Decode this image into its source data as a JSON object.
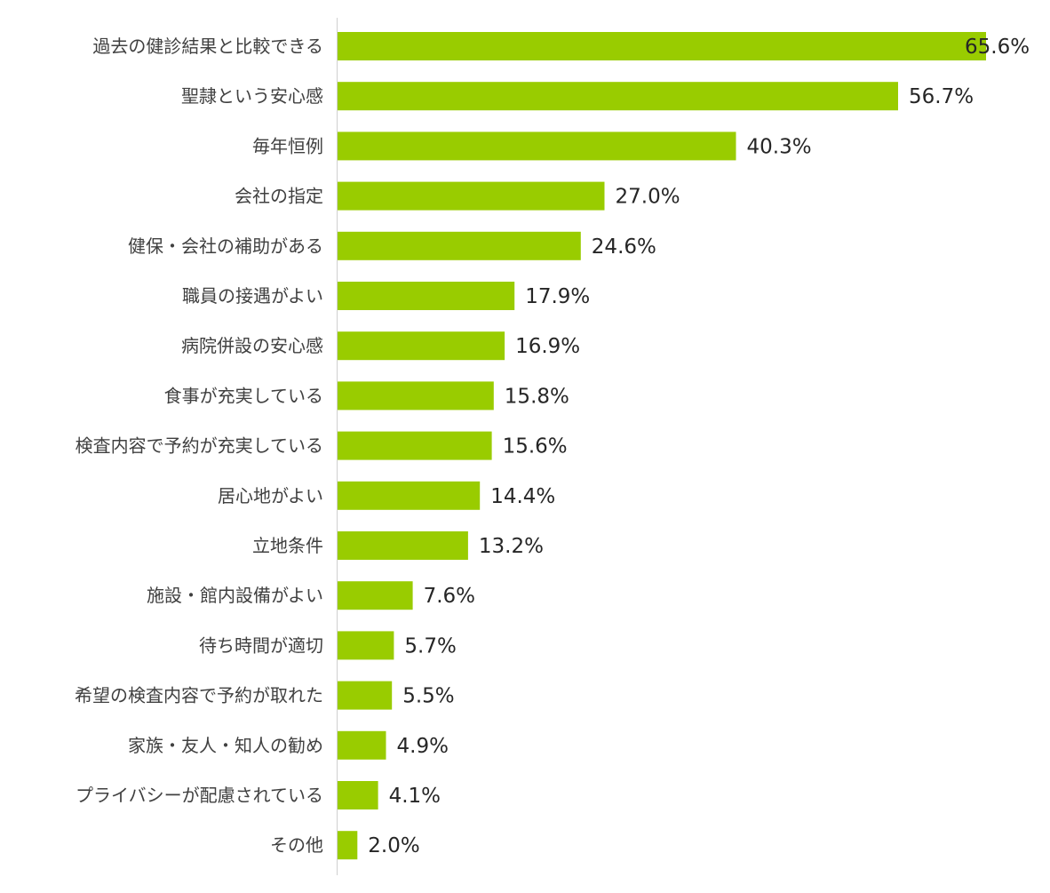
{
  "chart_data": {
    "type": "bar",
    "orientation": "horizontal",
    "title": "",
    "xlabel": "",
    "ylabel": "",
    "unit": "%",
    "xlim": [
      0,
      65.6
    ],
    "grid": false,
    "legend": "none",
    "bar_color": "#99cc00",
    "categories": [
      "過去の健診結果と比較できる",
      "聖隷という安心感",
      "毎年恒例",
      "会社の指定",
      "健保・会社の補助がある",
      "職員の接遇がよい",
      "病院併設の安心感",
      "食事が充実している",
      "検査内容で予約が充実している",
      "居心地がよい",
      "立地条件",
      "施設・館内設備がよい",
      "待ち時間が適切",
      "希望の検査内容で予約が取れた",
      "家族・友人・知人の勧め",
      "プライバシーが配慮されている",
      "その他"
    ],
    "values": [
      65.6,
      56.7,
      40.3,
      27.0,
      24.6,
      17.9,
      16.9,
      15.8,
      15.6,
      14.4,
      13.2,
      7.6,
      5.7,
      5.5,
      4.9,
      4.1,
      2.0
    ],
    "value_labels": [
      "65.6%",
      "56.7%",
      "40.3%",
      "27.0%",
      "24.6%",
      "17.9%",
      "16.9%",
      "15.8%",
      "15.6%",
      "14.4%",
      "13.2%",
      "7.6%",
      "5.7%",
      "5.5%",
      "4.9%",
      "4.1%",
      "2.0%"
    ]
  }
}
